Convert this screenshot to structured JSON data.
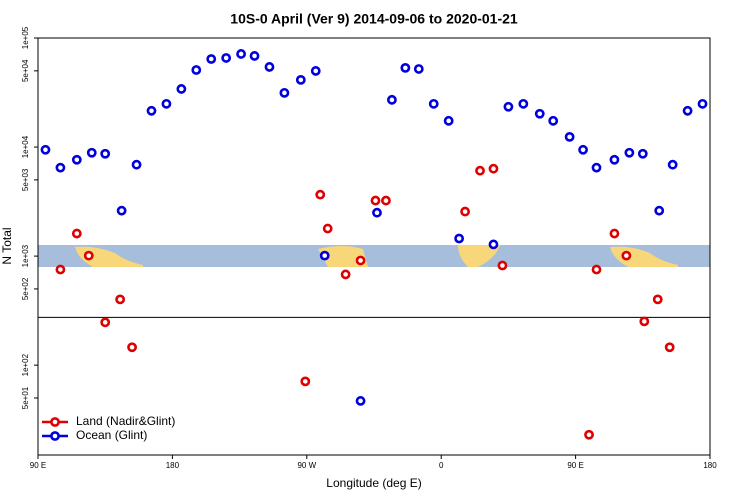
{
  "chart_data": {
    "type": "scatter",
    "title": "10S-0 April (Ver 9)   2014-09-06 to 2020-01-21",
    "x_label": "Longitude (deg E)",
    "y_label": "N Total",
    "log_y": true,
    "legend": "bottom-left",
    "reference_line": 274,
    "xlim": [
      90,
      540
    ],
    "xticks": [
      {
        "value": 90,
        "label": "90 E"
      },
      {
        "value": 180,
        "label": "180"
      },
      {
        "value": 270,
        "label": "90 W"
      },
      {
        "value": 360,
        "label": "0"
      },
      {
        "value": 450,
        "label": "90 E"
      },
      {
        "value": 540,
        "label": "180"
      }
    ],
    "ylim": [
      15,
      100000
    ],
    "yticks": [
      {
        "value": 100000,
        "label": "1e+05"
      },
      {
        "value": 50000,
        "label": "5e+04"
      },
      {
        "value": 10000,
        "label": "1e+04"
      },
      {
        "value": 5000,
        "label": "5e+03"
      },
      {
        "value": 1000,
        "label": "1e+03"
      },
      {
        "value": 500,
        "label": "5e+02"
      },
      {
        "value": 100,
        "label": "1e+02"
      },
      {
        "value": 50,
        "label": "5e+01"
      }
    ],
    "series": [
      {
        "name": "Land (Nadir&Glint)",
        "color": "#e00000",
        "x": [
          105,
          116,
          124,
          135,
          145,
          153,
          269,
          279,
          284,
          296,
          306,
          316,
          323,
          376,
          386,
          395,
          401,
          459,
          464,
          476,
          484,
          496,
          505,
          513
        ],
        "values": [
          753,
          1610,
          1010,
          247,
          401,
          146,
          71,
          3660,
          1790,
          679,
          912,
          3230,
          3230,
          2560,
          6070,
          6330,
          820,
          23,
          753,
          1610,
          1010,
          252,
          401,
          146
        ]
      },
      {
        "name": "Ocean (Glint)",
        "color": "#0000dd",
        "x": [
          95,
          105,
          116,
          126,
          135,
          146,
          156,
          166,
          176,
          186,
          196,
          206,
          216,
          226,
          235,
          245,
          255,
          266,
          276,
          282,
          306,
          317,
          327,
          336,
          345,
          355,
          365,
          372,
          395,
          405,
          415,
          426,
          435,
          446,
          455,
          464,
          476,
          486,
          495,
          506,
          515,
          525,
          535
        ],
        "values": [
          9440,
          6470,
          7650,
          8870,
          8680,
          2610,
          6890,
          21500,
          24900,
          34100,
          50900,
          64200,
          65600,
          71400,
          68500,
          54300,
          31400,
          41300,
          49900,
          1010,
          47,
          2500,
          27100,
          53200,
          52000,
          24900,
          17400,
          1450,
          1280,
          23400,
          24900,
          20200,
          17400,
          12400,
          9440,
          6470,
          7650,
          8870,
          8680,
          2610,
          6890,
          21500,
          24900
        ]
      }
    ]
  }
}
